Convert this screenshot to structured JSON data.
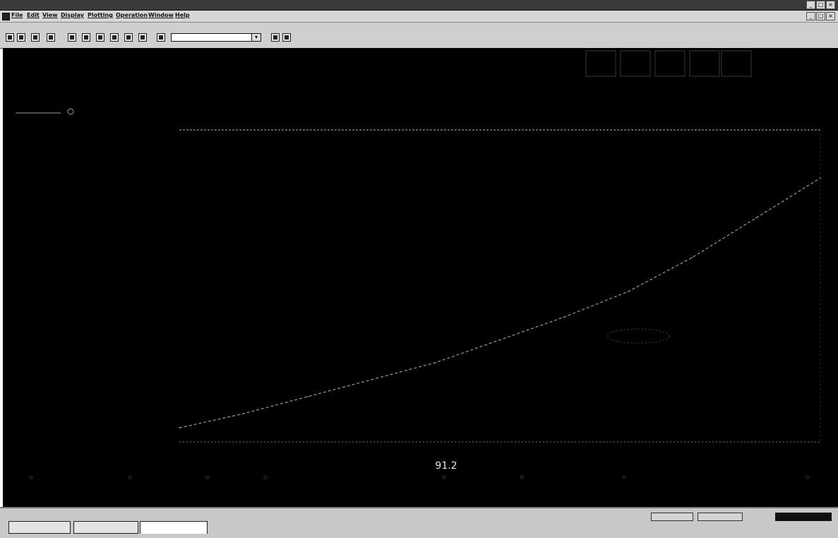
{
  "window": {
    "title": "",
    "controls": [
      "_",
      "□",
      "×"
    ]
  },
  "menu": {
    "items": [
      "File",
      "Edit",
      "View",
      "Display",
      "Plotting",
      "Operation",
      "Window",
      "Help"
    ]
  },
  "toolbar": {
    "buttons": [
      "open-icon",
      "save-icon",
      "print-icon",
      "cursor-icon",
      "zoom-in-icon",
      "zoom-out-icon",
      "fit-icon",
      "grid-icon",
      "autoscale-icon",
      "refresh-icon"
    ],
    "combo_value": "",
    "extra_buttons": [
      "apply-icon",
      "settings-icon"
    ]
  },
  "plot": {
    "readout_value": "91.2",
    "legend_marker": "circle-marker-icon",
    "colors": {
      "background": "#000000",
      "trace": "#9a9a9a",
      "frame": "#7a7a7a"
    }
  },
  "chart_data": {
    "type": "line",
    "title": "",
    "xlabel": "",
    "ylabel": "",
    "x": [
      0,
      0.1,
      0.2,
      0.3,
      0.4,
      0.5,
      0.6,
      0.7,
      0.8,
      0.9,
      1.0
    ],
    "series": [
      {
        "name": "",
        "values": [
          0.0,
          0.05,
          0.11,
          0.17,
          0.23,
          0.31,
          0.39,
          0.48,
          0.6,
          0.74,
          0.88
        ]
      }
    ],
    "grid": false,
    "legend": "top-left"
  },
  "tabs": {
    "items": [
      "",
      "",
      ""
    ],
    "active_index": 2
  },
  "status": {
    "fields": [
      "",
      ""
    ]
  }
}
